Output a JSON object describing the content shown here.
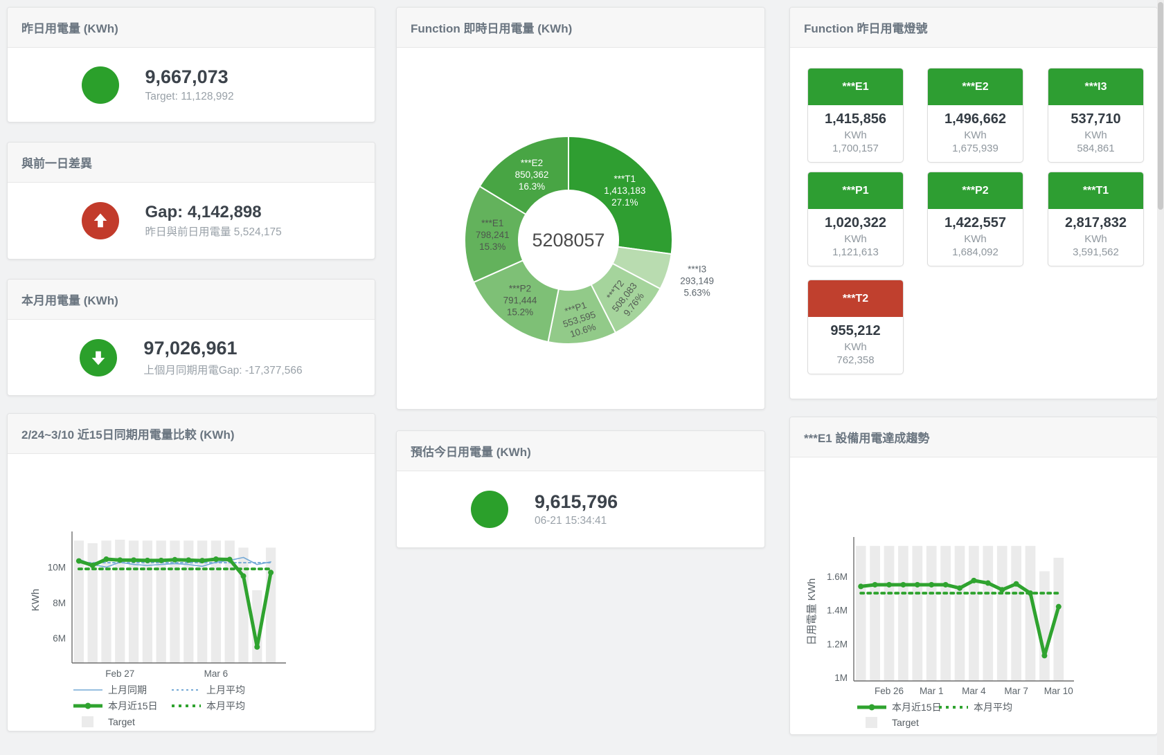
{
  "colors": {
    "green": "#2e9e32",
    "red": "#c0402e",
    "circle_green": "#2ba02b",
    "circle_red": "#c23b2b",
    "bar": "#ebebeb",
    "blue": "#74a9d6",
    "line_green": "#2fa32f",
    "title_text": "#6a7580",
    "value_text": "#3c434b",
    "sub_text": "#99a1a8"
  },
  "cards": {
    "yesterday": {
      "title": "昨日用電量 (KWh)",
      "value": "9,667,073",
      "target": "Target: 11,128,992"
    },
    "gap": {
      "title": "與前一日差異",
      "value": "Gap: 4,142,898",
      "sub": "昨日與前日用電量 5,524,175"
    },
    "month": {
      "title": "本月用電量 (KWh)",
      "value": "97,026,961",
      "sub": "上個月同期用電Gap: -17,377,566"
    },
    "realtime": {
      "title": "Function 即時日用電量 (KWh)",
      "center_total": "5208057"
    },
    "lights": {
      "title": "Function 昨日用電燈號",
      "tiles": [
        {
          "name": "***E1",
          "value": "1,415,856",
          "unit": "KWh",
          "target": "1,700,157",
          "status": "green"
        },
        {
          "name": "***E2",
          "value": "1,496,662",
          "unit": "KWh",
          "target": "1,675,939",
          "status": "green"
        },
        {
          "name": "***I3",
          "value": "537,710",
          "unit": "KWh",
          "target": "584,861",
          "status": "green"
        },
        {
          "name": "***P1",
          "value": "1,020,322",
          "unit": "KWh",
          "target": "1,121,613",
          "status": "green"
        },
        {
          "name": "***P2",
          "value": "1,422,557",
          "unit": "KWh",
          "target": "1,684,092",
          "status": "green"
        },
        {
          "name": "***T1",
          "value": "2,817,832",
          "unit": "KWh",
          "target": "3,591,562",
          "status": "green"
        },
        {
          "name": "***T2",
          "value": "955,212",
          "unit": "KWh",
          "target": "762,358",
          "status": "red"
        }
      ]
    },
    "compare": {
      "title": "2/24~3/10 近15日同期用電量比較 (KWh)"
    },
    "forecast": {
      "title": "預估今日用電量 (KWh)",
      "value": "9,615,796",
      "timestamp": "06-21 15:34:41"
    },
    "e1trend": {
      "title": "***E1 設備用電達成趨勢"
    }
  },
  "chart_data": [
    {
      "id": "realtime-donut",
      "type": "pie",
      "title": "Function 即時日用電量 (KWh)",
      "center_label": "5208057",
      "inner_radius": 72,
      "outer_radius": 150,
      "slices": [
        {
          "name": "***T1",
          "value": 1413183,
          "value_label": "1,413,183",
          "pct": "27.1%",
          "color": "#2f9e31",
          "label_color": "#ffffff",
          "rotate": 0,
          "label_r": 108,
          "outside": false
        },
        {
          "name": "***I3",
          "value": 293149,
          "value_label": "293,149",
          "pct": "5.63%",
          "color": "#b9dcb0",
          "label_color": "#5d666d",
          "rotate": 0,
          "label_r": 195,
          "outside": true
        },
        {
          "name": "***T2",
          "value": 508083,
          "value_label": "508,083",
          "pct": "9.76%",
          "color": "#a5d49c",
          "label_color": "#535c53",
          "rotate": -52,
          "label_r": 116,
          "outside": false
        },
        {
          "name": "***P1",
          "value": 553595,
          "value_label": "553,595",
          "pct": "10.6%",
          "color": "#92ca89",
          "label_color": "#535c53",
          "rotate": -18,
          "label_r": 116,
          "outside": false
        },
        {
          "name": "***P2",
          "value": 791444,
          "value_label": "791,444",
          "pct": "15.2%",
          "color": "#7ec076",
          "label_color": "#4e574e",
          "rotate": 0,
          "label_r": 112,
          "outside": false
        },
        {
          "name": "***E1",
          "value": 798241,
          "value_label": "798,241",
          "pct": "15.3%",
          "color": "#63b25c",
          "label_color": "#4e574e",
          "rotate": 0,
          "label_r": 110,
          "outside": false
        },
        {
          "name": "***E2",
          "value": 850362,
          "value_label": "850,362",
          "pct": "16.3%",
          "color": "#48a544",
          "label_color": "#ffffff",
          "rotate": 0,
          "label_r": 108,
          "outside": false
        }
      ]
    },
    {
      "id": "compare-chart",
      "type": "line+bar",
      "title": "2/24~3/10 近15日同期用電量比較 (KWh)",
      "x": [
        "Feb 24",
        "Feb 25",
        "Feb 26",
        "Feb 27",
        "Feb 28",
        "Mar 1",
        "Mar 2",
        "Mar 3",
        "Mar 4",
        "Mar 5",
        "Mar 6",
        "Mar 7",
        "Mar 8",
        "Mar 9",
        "Mar 10"
      ],
      "x_ticks": [
        {
          "index": 3,
          "label": "Feb 27"
        },
        {
          "index": 10,
          "label": "Mar 6"
        }
      ],
      "ylabel": "KWh",
      "ylim": [
        4.6,
        11.7
      ],
      "unit": "M",
      "y_ticks": [
        {
          "v": 6,
          "label": "6M"
        },
        {
          "v": 8,
          "label": "8M"
        },
        {
          "v": 10,
          "label": "10M"
        }
      ],
      "grid": false,
      "legend_position": "bottom-left",
      "series": [
        {
          "name": "Target",
          "safe": "target",
          "type": "bar",
          "color": "#ebebeb",
          "values": [
            11.5,
            11.35,
            11.5,
            11.55,
            11.5,
            11.5,
            11.5,
            11.5,
            11.5,
            11.5,
            11.5,
            11.5,
            11.1,
            8.7,
            11.1
          ]
        },
        {
          "name": "上月同期",
          "safe": "prev-month-period",
          "type": "line",
          "color": "#74a9d6",
          "width": 1.6,
          "dash": null,
          "markers": false,
          "values": [
            10.45,
            10.15,
            10.0,
            10.28,
            10.15,
            10.1,
            10.15,
            10.2,
            10.15,
            10.05,
            10.28,
            10.38,
            10.55,
            10.15,
            10.3
          ]
        },
        {
          "name": "上月平均",
          "safe": "prev-month-avg",
          "type": "line",
          "color": "#74a9d6",
          "width": 2,
          "dash": "3 4",
          "markers": false,
          "const": 10.25
        },
        {
          "name": "本月近15日",
          "safe": "this-month-15d",
          "type": "line",
          "color": "#2fa32f",
          "width": 5,
          "dash": null,
          "markers": true,
          "values": [
            10.35,
            10.1,
            10.45,
            10.4,
            10.4,
            10.38,
            10.38,
            10.42,
            10.4,
            10.37,
            10.45,
            10.43,
            9.5,
            5.5,
            9.7
          ]
        },
        {
          "name": "本月平均",
          "safe": "this-month-avg",
          "type": "line",
          "color": "#2fa32f",
          "width": 4,
          "dash": "4 6",
          "markers": false,
          "const": 9.9
        }
      ],
      "legend": [
        [
          "上月同期",
          "上月平均"
        ],
        [
          "本月近15日",
          "本月平均"
        ],
        [
          "Target"
        ]
      ]
    },
    {
      "id": "e1trend-chart",
      "type": "line+bar",
      "title": "***E1 設備用電達成趨勢",
      "x": [
        "Feb 24",
        "Feb 25",
        "Feb 26",
        "Feb 27",
        "Feb 28",
        "Mar 1",
        "Mar 2",
        "Mar 3",
        "Mar 4",
        "Mar 5",
        "Mar 6",
        "Mar 7",
        "Mar 8",
        "Mar 9",
        "Mar 10"
      ],
      "x_ticks": [
        {
          "index": 2,
          "label": "Feb 26"
        },
        {
          "index": 5,
          "label": "Mar 1"
        },
        {
          "index": 8,
          "label": "Mar 4"
        },
        {
          "index": 11,
          "label": "Mar 7"
        },
        {
          "index": 14,
          "label": "Mar 10"
        }
      ],
      "ylabel": "日用電量 KWh",
      "ylim": [
        0.98,
        1.8
      ],
      "unit": "M",
      "y_ticks": [
        {
          "v": 1,
          "label": "1M"
        },
        {
          "v": 1.2,
          "label": "1.2M"
        },
        {
          "v": 1.4,
          "label": "1.4M"
        },
        {
          "v": 1.6,
          "label": "1.6M"
        }
      ],
      "grid": false,
      "legend_position": "bottom-left",
      "series": [
        {
          "name": "Target",
          "safe": "target",
          "type": "bar",
          "color": "#ebebeb",
          "values": [
            1.78,
            1.78,
            1.78,
            1.78,
            1.78,
            1.78,
            1.78,
            1.78,
            1.78,
            1.78,
            1.78,
            1.78,
            1.78,
            1.63,
            1.71
          ]
        },
        {
          "name": "本月近15日",
          "safe": "this-month-15d",
          "type": "line",
          "color": "#2fa32f",
          "width": 5,
          "dash": null,
          "markers": true,
          "values": [
            1.54,
            1.55,
            1.55,
            1.55,
            1.55,
            1.55,
            1.55,
            1.53,
            1.575,
            1.56,
            1.52,
            1.555,
            1.5,
            1.13,
            1.42
          ]
        },
        {
          "name": "本月平均",
          "safe": "this-month-avg",
          "type": "line",
          "color": "#2fa32f",
          "width": 4,
          "dash": "4 6",
          "markers": false,
          "const": 1.5
        }
      ],
      "legend": [
        [
          "本月近15日",
          "本月平均"
        ],
        [
          "Target"
        ]
      ]
    }
  ]
}
